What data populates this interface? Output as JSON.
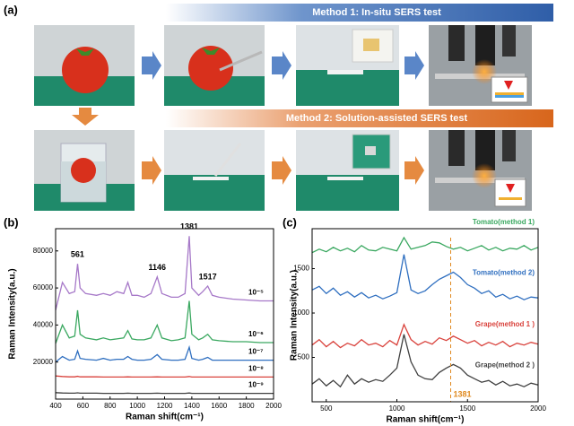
{
  "panel_a": {
    "label": "(a)",
    "method1": "Method 1: In-situ SERS test",
    "method2": "Method 2: Solution-assisted SERS test"
  },
  "chart_data": [
    {
      "type": "line",
      "panel_label": "(b)",
      "x_label": "Raman shift(cm⁻¹)",
      "y_label": "Raman Intensity(a.u.)",
      "x": [
        400,
        450,
        500,
        540,
        561,
        580,
        620,
        700,
        750,
        800,
        850,
        900,
        930,
        960,
        1000,
        1050,
        1100,
        1146,
        1180,
        1250,
        1300,
        1350,
        1381,
        1400,
        1450,
        1480,
        1517,
        1550,
        1600,
        1700,
        1800,
        1900,
        2000
      ],
      "series": [
        {
          "name": "10⁻⁵",
          "color": "#a678c8",
          "values": [
            48000,
            63000,
            57000,
            58000,
            73000,
            60000,
            57000,
            56000,
            57000,
            56000,
            58000,
            57000,
            63000,
            56000,
            56000,
            55000,
            57000,
            66000,
            57000,
            55000,
            55000,
            57000,
            88000,
            60000,
            56000,
            58000,
            61000,
            56000,
            55000,
            54000,
            53500,
            53000,
            53000
          ]
        },
        {
          "name": "10⁻⁶",
          "color": "#3aa860",
          "values": [
            30000,
            40000,
            33000,
            34000,
            48000,
            35000,
            33000,
            32000,
            33000,
            32000,
            32500,
            33000,
            37000,
            32500,
            32000,
            32000,
            33000,
            40000,
            33000,
            31500,
            32000,
            33000,
            53000,
            35000,
            32000,
            33000,
            35000,
            32000,
            31500,
            31000,
            31000,
            30500,
            30500
          ]
        },
        {
          "name": "10⁻⁷",
          "color": "#2f6fc0",
          "values": [
            20000,
            23000,
            21000,
            21500,
            26000,
            22000,
            21500,
            21000,
            22000,
            21000,
            21500,
            21500,
            23000,
            21500,
            21000,
            21000,
            21500,
            24000,
            21500,
            21000,
            21000,
            21500,
            28000,
            22000,
            21000,
            21500,
            22500,
            21000,
            21000,
            21000,
            21000,
            21000,
            21000
          ]
        },
        {
          "name": "10⁻⁸",
          "color": "#d9423c",
          "values": [
            12500,
            12200,
            12000,
            12000,
            12300,
            12000,
            12000,
            12000,
            11900,
            11900,
            11900,
            11900,
            12000,
            11900,
            11900,
            11900,
            11900,
            12000,
            11900,
            11900,
            11900,
            11900,
            12200,
            11900,
            11900,
            11900,
            11900,
            11900,
            11900,
            11900,
            11900,
            11900,
            11900
          ]
        },
        {
          "name": "10⁻⁹",
          "color": "#404040",
          "values": [
            3500,
            3300,
            3200,
            3200,
            3400,
            3200,
            3200,
            3200,
            3100,
            3100,
            3100,
            3100,
            3200,
            3100,
            3100,
            3100,
            3100,
            3200,
            3100,
            3100,
            3100,
            3100,
            3300,
            3100,
            3100,
            3100,
            3100,
            3100,
            3100,
            3100,
            3100,
            3100,
            3100
          ]
        }
      ],
      "annotations": [
        "561",
        "1146",
        "1381",
        "1517"
      ],
      "xlim": [
        400,
        2000
      ],
      "xticks": [
        400,
        600,
        800,
        1000,
        1200,
        1400,
        1600,
        1800,
        2000
      ],
      "ylim": [
        0,
        92000
      ],
      "yticks": [
        20000,
        40000,
        60000,
        80000
      ]
    },
    {
      "type": "line",
      "panel_label": "(c)",
      "x_label": "Raman shift(cm⁻¹)",
      "y_label": "Raman Intensity(a.u.)",
      "x": [
        400,
        450,
        500,
        550,
        600,
        650,
        700,
        750,
        800,
        850,
        900,
        950,
        1000,
        1050,
        1100,
        1150,
        1200,
        1250,
        1300,
        1350,
        1400,
        1450,
        1500,
        1550,
        1600,
        1650,
        1700,
        1750,
        1800,
        1850,
        1900,
        1950,
        2000
      ],
      "series": [
        {
          "name": "Tomato(method 1)",
          "color": "#3aa860",
          "values": [
            1680,
            1720,
            1690,
            1740,
            1700,
            1730,
            1690,
            1760,
            1710,
            1700,
            1740,
            1720,
            1700,
            1850,
            1720,
            1740,
            1760,
            1800,
            1790,
            1750,
            1720,
            1740,
            1700,
            1730,
            1760,
            1710,
            1740,
            1700,
            1730,
            1720,
            1760,
            1710,
            1740
          ]
        },
        {
          "name": "Tomato(method 2)",
          "color": "#2f6fc0",
          "values": [
            1260,
            1300,
            1220,
            1280,
            1200,
            1240,
            1180,
            1230,
            1170,
            1200,
            1160,
            1190,
            1230,
            1660,
            1260,
            1220,
            1250,
            1320,
            1380,
            1420,
            1460,
            1400,
            1320,
            1280,
            1220,
            1250,
            1180,
            1210,
            1160,
            1190,
            1150,
            1180,
            1170
          ]
        },
        {
          "name": "Grape(method 1 )",
          "color": "#d9423c",
          "values": [
            640,
            700,
            620,
            680,
            610,
            660,
            630,
            700,
            640,
            660,
            620,
            690,
            640,
            870,
            700,
            640,
            680,
            650,
            720,
            690,
            740,
            700,
            660,
            690,
            630,
            670,
            640,
            680,
            620,
            660,
            640,
            670,
            650
          ]
        },
        {
          "name": "Grape(method 2 )",
          "color": "#404040",
          "values": [
            200,
            260,
            180,
            240,
            170,
            300,
            200,
            260,
            220,
            250,
            230,
            300,
            380,
            760,
            450,
            300,
            260,
            250,
            330,
            380,
            420,
            380,
            300,
            260,
            220,
            240,
            190,
            230,
            180,
            200,
            170,
            210,
            190
          ]
        }
      ],
      "vline": 1381,
      "xlim": [
        400,
        2000
      ],
      "xticks": [
        500,
        1000,
        1500,
        2000
      ],
      "ylim": [
        0,
        1950
      ],
      "yticks": [
        500,
        1000,
        1500
      ]
    }
  ]
}
